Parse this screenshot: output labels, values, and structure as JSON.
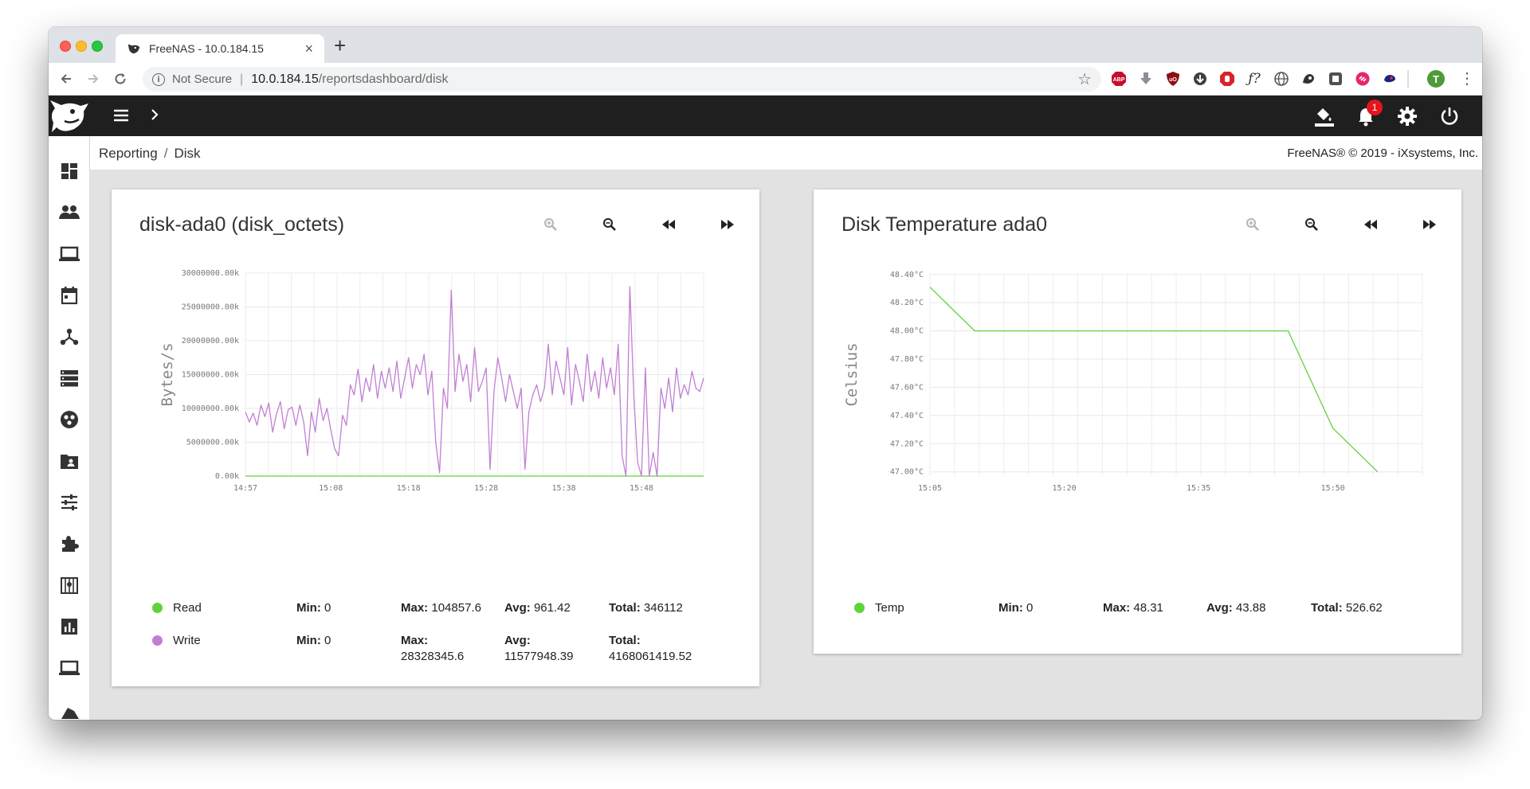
{
  "browser": {
    "tab_title": "FreeNAS - 10.0.184.15",
    "not_secure": "Not Secure",
    "url_host": "10.0.184.15",
    "url_path": "/reportsdashboard/disk",
    "profile_initial": "T",
    "extensions": [
      "abp-icon",
      "download-arrow-icon",
      "ublock-icon",
      "download-icon",
      "stop-hand-icon",
      "function-icon",
      "globe-icon",
      "privacy-icon",
      "screenshot-icon",
      "link-icon",
      "ghost-icon"
    ],
    "ext_labels": {
      "abp": "ABP",
      "fx": "ƒ?"
    }
  },
  "appbar": {
    "notification_count": "1"
  },
  "sidebar": {
    "items": [
      "dashboard",
      "accounts",
      "system",
      "tasks",
      "network",
      "storage",
      "directory-services",
      "sharing",
      "services",
      "plugins",
      "jails",
      "reporting",
      "virtual-machines",
      "display"
    ]
  },
  "breadcrumb": {
    "parent": "Reporting",
    "sep": "/",
    "current": "Disk"
  },
  "copyright": "FreeNAS® © 2019 - iXsystems, Inc.",
  "cards": {
    "disk_octets": {
      "title": "disk-ada0 (disk_octets)",
      "legend": [
        {
          "name": "Read",
          "min_label": "Min:",
          "min": "0",
          "max_label": "Max:",
          "max": "104857.6",
          "avg_label": "Avg:",
          "avg": "961.42",
          "total_label": "Total:",
          "total": "346112"
        },
        {
          "name": "Write",
          "min_label": "Min:",
          "min": "0",
          "max_label": "Max:",
          "max": "28328345.6",
          "avg_label": "Avg:",
          "avg": "11577948.39",
          "total_label": "Total:",
          "total": "4168061419.52"
        }
      ]
    },
    "disk_temp": {
      "title": "Disk Temperature ada0",
      "legend": [
        {
          "name": "Temp",
          "min_label": "Min:",
          "min": "0",
          "max_label": "Max:",
          "max": "48.31",
          "avg_label": "Avg:",
          "avg": "43.88",
          "total_label": "Total:",
          "total": "526.62"
        }
      ]
    }
  },
  "colors": {
    "read": "#5fd33a",
    "write": "#c17fd4",
    "temp": "#5fd33a",
    "appbar": "#1f1f1f"
  },
  "chart_data": [
    {
      "type": "line",
      "ylabel": "Bytes/s",
      "ylim": [
        0,
        30000000
      ],
      "yticks": [
        0,
        5000000,
        10000000,
        15000000,
        20000000,
        25000000,
        30000000
      ],
      "ytick_labels": [
        "0.00k",
        "5000000.00k",
        "10000000.00k",
        "15000000.00k",
        "20000000.00k",
        "25000000.00k",
        "30000000.00k"
      ],
      "x_tick_labels": [
        "14:57",
        "15:08",
        "15:18",
        "15:28",
        "15:38",
        "15:48"
      ],
      "x_tick_minutes": [
        0,
        11,
        21,
        31,
        41,
        51
      ],
      "xlim_minutes": [
        0,
        59
      ],
      "grid": true,
      "series": [
        {
          "name": "Read",
          "color": "#5fd33a",
          "x_minutes": [
            0,
            59
          ],
          "values": [
            0,
            0
          ]
        },
        {
          "name": "Write",
          "color": "#c17fd4",
          "x_minutes": [
            0,
            0.5,
            1,
            1.5,
            2,
            2.5,
            3,
            3.5,
            4,
            4.5,
            5,
            5.5,
            6,
            6.5,
            7,
            7.5,
            8,
            8.5,
            9,
            9.5,
            10,
            10.5,
            11,
            11.5,
            12,
            12.5,
            13,
            13.5,
            14,
            14.5,
            15,
            15.5,
            16,
            16.5,
            17,
            17.5,
            18,
            18.5,
            19,
            19.5,
            20,
            20.5,
            21,
            21.5,
            22,
            22.5,
            23,
            23.5,
            24,
            24.5,
            25,
            25.5,
            26,
            26.5,
            27,
            27.5,
            28,
            28.5,
            29,
            29.5,
            30,
            30.5,
            31,
            31.5,
            32,
            32.5,
            33,
            33.5,
            34,
            34.5,
            35,
            35.5,
            36,
            36.5,
            37,
            37.5,
            38,
            38.5,
            39,
            39.5,
            40,
            40.5,
            41,
            41.5,
            42,
            42.5,
            43,
            43.5,
            44,
            44.5,
            45,
            45.5,
            46,
            46.5,
            47,
            47.5,
            48,
            48.5,
            49,
            49.5,
            50,
            50.5,
            51,
            51.5,
            52,
            52.5,
            53,
            53.5,
            54,
            54.5,
            55,
            55.5,
            56,
            56.5,
            57,
            57.5,
            58,
            58.5,
            59
          ],
          "values": [
            9500000,
            8000000,
            9300000,
            7500000,
            10500000,
            8800000,
            10800000,
            6500000,
            9200000,
            11000000,
            7000000,
            9800000,
            10200000,
            7500000,
            10500000,
            8000000,
            3000000,
            9500000,
            6500000,
            11500000,
            8200000,
            10000000,
            6800000,
            4000000,
            3000000,
            9000000,
            7500000,
            13500000,
            12000000,
            15800000,
            11000000,
            14500000,
            12500000,
            16500000,
            11500000,
            15500000,
            13000000,
            16000000,
            12500000,
            17000000,
            11500000,
            14500000,
            17500000,
            13000000,
            16500000,
            15000000,
            18000000,
            12000000,
            15500000,
            5000000,
            500000,
            13000000,
            10000000,
            27500000,
            12500000,
            18000000,
            14000000,
            16500000,
            11000000,
            19000000,
            12500000,
            14000000,
            16000000,
            1000000,
            12500000,
            17500000,
            14500000,
            11000000,
            15000000,
            12500000,
            10000000,
            13000000,
            1000000,
            9500000,
            12000000,
            13500000,
            11000000,
            13000000,
            19500000,
            12000000,
            17000000,
            14500000,
            12000000,
            19000000,
            10500000,
            16500000,
            14000000,
            11000000,
            18000000,
            12500000,
            15500000,
            11500000,
            17500000,
            13000000,
            16000000,
            12000000,
            19500000,
            3000000,
            0,
            28000000,
            12000000,
            2000000,
            0,
            16000000,
            0,
            3500000,
            0,
            13000000,
            10000000,
            14500000,
            9500000,
            16000000,
            11500000,
            13500000,
            12000000,
            15500000,
            13000000,
            12500000,
            14500000
          ]
        }
      ]
    },
    {
      "type": "line",
      "ylabel": "Celsius",
      "ylim": [
        46.97,
        48.41
      ],
      "yticks": [
        47.0,
        47.2,
        47.4,
        47.6,
        47.8,
        48.0,
        48.2,
        48.4
      ],
      "ytick_labels": [
        "47.00°C",
        "47.20°C",
        "47.40°C",
        "47.60°C",
        "47.80°C",
        "48.00°C",
        "48.20°C",
        "48.40°C"
      ],
      "x_tick_labels": [
        "15:05",
        "15:20",
        "15:35",
        "15:50"
      ],
      "x_tick_minutes": [
        0,
        15,
        30,
        45
      ],
      "xlim_minutes": [
        0,
        55
      ],
      "grid": true,
      "series": [
        {
          "name": "Temp",
          "color": "#5fd33a",
          "x_minutes": [
            0,
            5,
            40,
            45,
            50
          ],
          "values": [
            48.31,
            48.0,
            48.0,
            47.31,
            47.0
          ]
        }
      ]
    }
  ]
}
